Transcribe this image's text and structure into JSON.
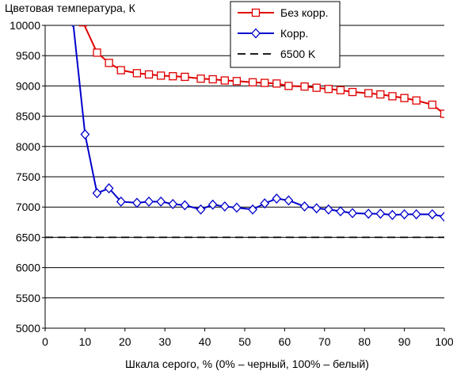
{
  "chart_data": {
    "type": "line",
    "title": "",
    "ylabel": "Цветовая температура, К",
    "xlabel": "Шкала серого, % (0% – черный, 100% – белый)",
    "xlim": [
      0,
      100
    ],
    "ylim": [
      5000,
      10000
    ],
    "x_ticks": [
      "0",
      "10",
      "20",
      "30",
      "40",
      "50",
      "60",
      "70",
      "80",
      "90",
      "100"
    ],
    "y_ticks": [
      "5000",
      "5500",
      "6000",
      "6500",
      "7000",
      "7500",
      "8000",
      "8500",
      "9000",
      "9500",
      "10000"
    ],
    "grid": "horizontal",
    "legend_position": "top-right",
    "series": [
      {
        "name": "Без корр.",
        "color": "#e00000",
        "marker": "square",
        "x": [
          9.5,
          13,
          16,
          19,
          23,
          26,
          29,
          32,
          35,
          39,
          42,
          45,
          48,
          52,
          55,
          58,
          61,
          65,
          68,
          71,
          74,
          77,
          81,
          84,
          87,
          90,
          93,
          97,
          100
        ],
        "values": [
          10050,
          9550,
          9380,
          9260,
          9210,
          9190,
          9170,
          9160,
          9150,
          9120,
          9110,
          9090,
          9080,
          9060,
          9050,
          9040,
          9000,
          8990,
          8970,
          8950,
          8930,
          8900,
          8880,
          8860,
          8830,
          8800,
          8760,
          8690,
          8540
        ]
      },
      {
        "name": "Корр.",
        "color": "#0000cc",
        "marker": "diamond",
        "x": [
          7,
          10,
          13,
          16,
          19,
          23,
          26,
          29,
          32,
          35,
          39,
          42,
          45,
          48,
          52,
          55,
          58,
          61,
          65,
          68,
          71,
          74,
          77,
          81,
          84,
          87,
          90,
          93,
          97,
          100
        ],
        "values": [
          10050,
          8200,
          7230,
          7310,
          7090,
          7070,
          7090,
          7090,
          7050,
          7030,
          6960,
          7040,
          7010,
          6990,
          6960,
          7060,
          7140,
          7110,
          7010,
          6980,
          6960,
          6930,
          6900,
          6890,
          6890,
          6870,
          6880,
          6880,
          6880,
          6840
        ]
      },
      {
        "name": "6500 K",
        "color": "#000000",
        "dashed": true,
        "x": [
          0,
          100
        ],
        "values": [
          6500,
          6500
        ]
      }
    ]
  }
}
